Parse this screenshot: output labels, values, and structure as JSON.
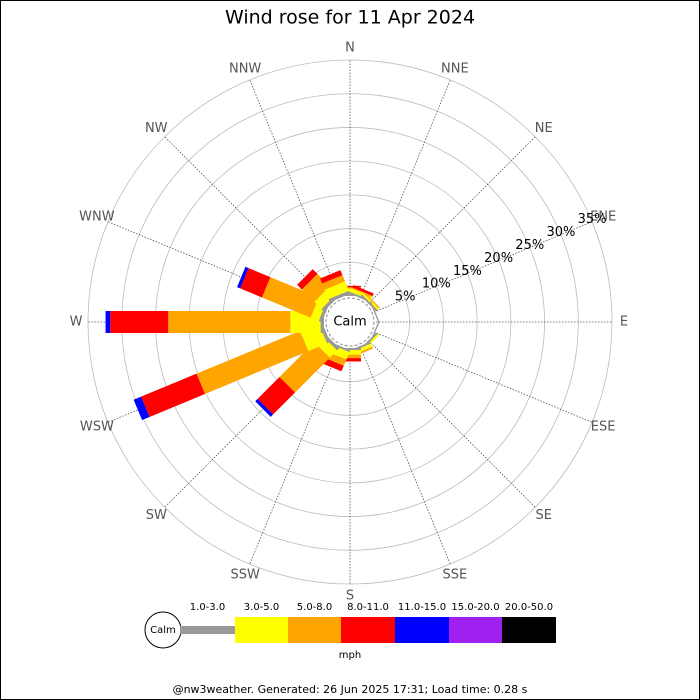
{
  "chart_data": {
    "type": "windrose",
    "title": "Wind rose for 11 Apr 2024",
    "directions": [
      "N",
      "NNE",
      "NE",
      "ENE",
      "E",
      "ESE",
      "SE",
      "SSE",
      "S",
      "SSW",
      "SW",
      "WSW",
      "W",
      "WNW",
      "NW",
      "NNW"
    ],
    "center_label": "Calm",
    "rlim": [
      0,
      35
    ],
    "rticks": [
      {
        "value": 5,
        "label": "5%"
      },
      {
        "value": 10,
        "label": "10%"
      },
      {
        "value": 15,
        "label": "15%"
      },
      {
        "value": 20,
        "label": "20%"
      },
      {
        "value": 25,
        "label": "25%"
      },
      {
        "value": 30,
        "label": "30%"
      },
      {
        "value": 35,
        "label": "35%"
      }
    ],
    "series": [
      {
        "name": "1.0-3.0",
        "color": "#999999",
        "values": [
          0.3,
          0.3,
          0.3,
          0.2,
          0,
          0.2,
          0.3,
          0.3,
          0.3,
          0.3,
          0.5,
          0.5,
          0.5,
          0.5,
          0.5,
          0.5
        ]
      },
      {
        "name": "3.0-5.0",
        "color": "#ffff00",
        "values": [
          0.8,
          0.5,
          0.3,
          0,
          0,
          0,
          0.3,
          0.5,
          0.7,
          1.2,
          1.5,
          3,
          4.5,
          1.3,
          1.5,
          1.5
        ]
      },
      {
        "name": "5.0-8.0",
        "color": "#ffa500",
        "values": [
          0.2,
          0.2,
          0.2,
          0,
          0,
          0,
          0,
          0.3,
          0.5,
          1,
          7.3,
          16.6,
          18.1,
          7.8,
          2.6,
          1
        ]
      },
      {
        "name": "8.0-11.0",
        "color": "#ff0000",
        "values": [
          0.2,
          0.4,
          0,
          0,
          0,
          0,
          0,
          0,
          0.5,
          0.9,
          4.6,
          8.9,
          8.6,
          3.5,
          1,
          0.8
        ]
      },
      {
        "name": "11.0-15.0",
        "color": "#0000ff",
        "values": [
          0,
          0,
          0,
          0,
          0,
          0,
          0,
          0,
          0,
          0,
          0.5,
          1.2,
          0.7,
          0.5,
          0,
          0
        ]
      },
      {
        "name": "15.0-20.0",
        "color": "#a020f0",
        "values": [
          0,
          0,
          0,
          0,
          0,
          0,
          0,
          0,
          0,
          0,
          0,
          0,
          0,
          0,
          0,
          0
        ]
      },
      {
        "name": "20.0-50.0",
        "color": "#000000",
        "values": [
          0,
          0,
          0,
          0,
          0,
          0,
          0,
          0,
          0,
          0,
          0,
          0,
          0,
          0,
          0,
          0
        ]
      }
    ],
    "legend_center_label": "Calm",
    "legend_unit": "mph",
    "footer": "@nw3weather. Generated: 26 Jun 2025 17:31; Load time: 0.28 s"
  }
}
